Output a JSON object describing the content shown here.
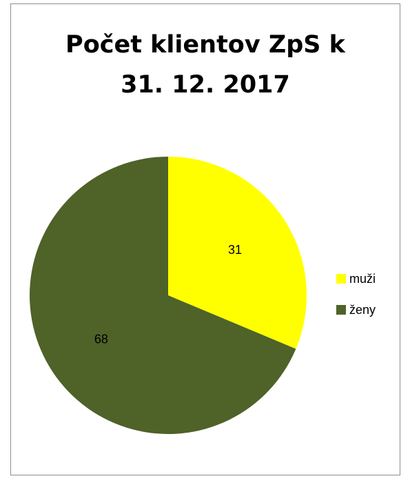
{
  "chart_data": {
    "type": "pie",
    "title_lines": [
      "Počet klientov ZpS k",
      "31. 12. 2017"
    ],
    "categories": [
      "muži",
      "ženy"
    ],
    "values": [
      31,
      68
    ],
    "colors": [
      "#ffff00",
      "#4f6228"
    ],
    "data_labels": [
      "31",
      "68"
    ],
    "legend_position": "right"
  }
}
